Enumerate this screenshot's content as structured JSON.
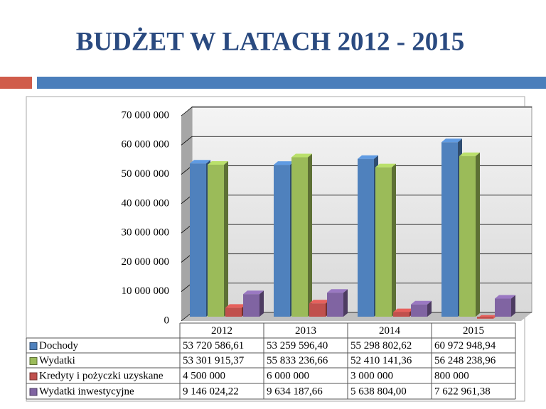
{
  "chart_data": {
    "type": "bar3d",
    "title": "BUDŻET W LATACH 2012 - 2015",
    "categories": [
      "2012",
      "2013",
      "2014",
      "2015"
    ],
    "series": [
      {
        "name": "Dochody",
        "color": "#4f81bd",
        "values": [
          53720586.61,
          53259596.4,
          55298802.62,
          60972948.94
        ],
        "value_labels": [
          "53 720 586,61",
          "53 259 596,40",
          "55 298 802,62",
          "60 972 948,94"
        ]
      },
      {
        "name": "Wydatki",
        "color": "#9bbb59",
        "values": [
          53301915.37,
          55833236.66,
          52410141.36,
          56248238.96
        ],
        "value_labels": [
          "53 301 915,37",
          "55 833 236,66",
          "52 410 141,36",
          "56 248 238,96"
        ]
      },
      {
        "name": "Kredyty i pożyczki uzyskane",
        "color": "#c0504d",
        "values": [
          4500000,
          6000000,
          3000000,
          800000
        ],
        "value_labels": [
          "4 500 000",
          "6 000 000",
          "3 000 000",
          "800 000"
        ]
      },
      {
        "name": "Wydatki inwestycyjne",
        "color": "#8064a2",
        "values": [
          9146024.22,
          9634187.66,
          5638804.0,
          7622961.38
        ],
        "value_labels": [
          "9 146 024,22",
          "9 634 187,66",
          "5 638 804,00",
          "7 622 961,38"
        ]
      }
    ],
    "ylim": [
      0,
      70000000
    ],
    "yticks": [
      0,
      {
        "value": 10000000,
        "label": "10 000 000"
      },
      {
        "value": 20000000,
        "label": "20 000 000"
      },
      {
        "value": 30000000,
        "label": "30 000 000"
      },
      {
        "value": 40000000,
        "label": "40 000 000"
      },
      {
        "value": 50000000,
        "label": "50 000 000"
      },
      {
        "value": 60000000,
        "label": "60 000 000"
      },
      {
        "value": 70000000,
        "label": "70 000 000"
      }
    ],
    "grid": true
  }
}
